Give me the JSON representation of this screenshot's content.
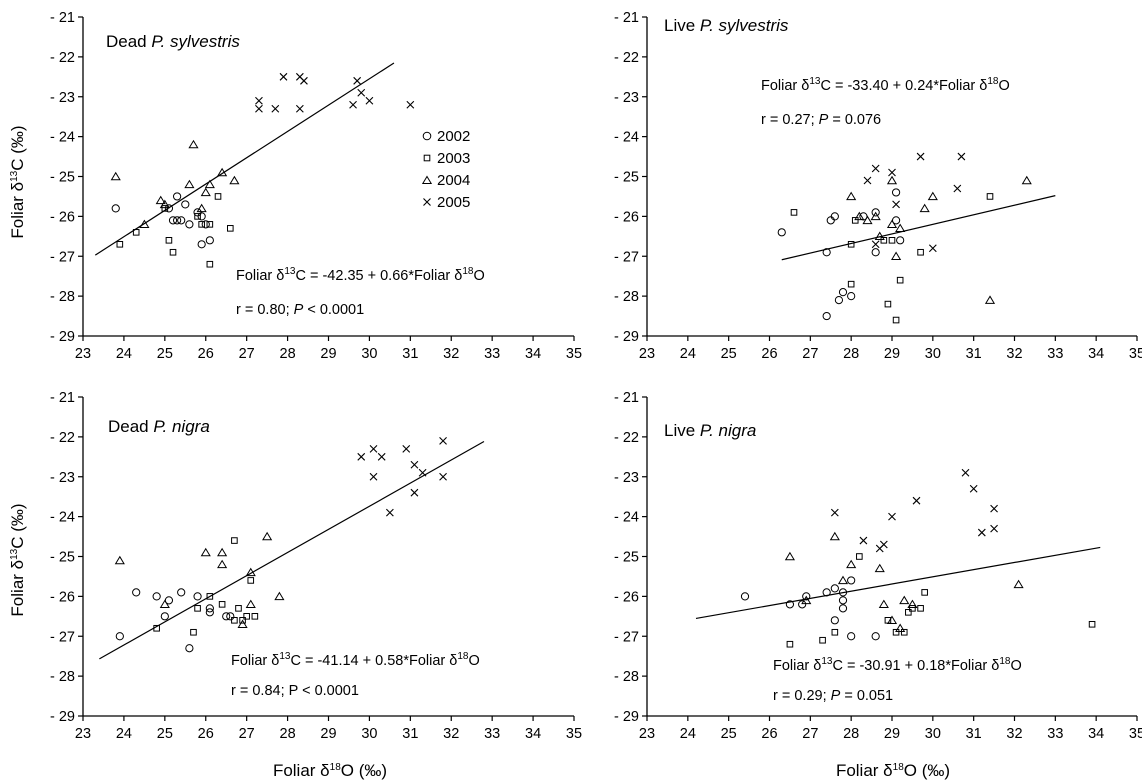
{
  "figure": {
    "x_axis_title": {
      "main": "Foliar δ",
      "sup": "18",
      "end": "O (‰)"
    },
    "y_axis_title": {
      "main": "Foliar δ",
      "sup": "13",
      "end": "C (‰)"
    },
    "legend": [
      {
        "symbol": "circle",
        "label": "2002"
      },
      {
        "symbol": "square",
        "label": "2003"
      },
      {
        "symbol": "triangle",
        "label": "2004"
      },
      {
        "symbol": "cross",
        "label": "2005"
      }
    ]
  },
  "chart_data": [
    {
      "type": "scatter",
      "panel": "Dead P. sylvestris",
      "label_plain": "Dead ",
      "label_italic": "P. sylvestris",
      "xlim": [
        23,
        35
      ],
      "ylim": [
        -29,
        -21
      ],
      "x_ticks": [
        "23",
        "24",
        "25",
        "26",
        "27",
        "28",
        "29",
        "30",
        "31",
        "32",
        "33",
        "34",
        "35"
      ],
      "y_ticks": [
        "- 21",
        "- 22",
        "- 23",
        "- 24",
        "- 25",
        "- 26",
        "- 27",
        "- 28",
        "- 29"
      ],
      "equation": {
        "pre": "Foliar δ",
        "sup1": "13",
        "mid": "C = -42.35 + 0.66*Foliar δ",
        "sup2": "18",
        "post": "O"
      },
      "stats": {
        "pre": "r = 0.80; ",
        "p": "P",
        "post": " < 0.0001"
      },
      "regression": {
        "intercept": -42.35,
        "slope": 0.66,
        "x_range": [
          23.3,
          30.6
        ]
      },
      "series": [
        {
          "name": "2002",
          "symbol": "circle",
          "points": [
            [
              23.8,
              -25.8
            ],
            [
              25.1,
              -25.8
            ],
            [
              25.2,
              -26.1
            ],
            [
              25.3,
              -25.5
            ],
            [
              25.3,
              -26.1
            ],
            [
              25.4,
              -26.1
            ],
            [
              25.5,
              -25.7
            ],
            [
              25.6,
              -26.2
            ],
            [
              25.8,
              -25.9
            ],
            [
              25.9,
              -26.0
            ],
            [
              25.9,
              -26.7
            ],
            [
              26.0,
              -26.2
            ],
            [
              26.1,
              -26.6
            ]
          ]
        },
        {
          "name": "2003",
          "symbol": "square",
          "points": [
            [
              23.9,
              -26.7
            ],
            [
              24.3,
              -26.4
            ],
            [
              25.0,
              -25.8
            ],
            [
              25.1,
              -26.6
            ],
            [
              25.2,
              -26.9
            ],
            [
              25.8,
              -26.0
            ],
            [
              25.9,
              -26.2
            ],
            [
              26.1,
              -26.2
            ],
            [
              26.1,
              -27.2
            ],
            [
              26.3,
              -25.5
            ],
            [
              26.6,
              -26.3
            ]
          ]
        },
        {
          "name": "2004",
          "symbol": "triangle",
          "points": [
            [
              23.8,
              -25.0
            ],
            [
              24.5,
              -26.2
            ],
            [
              24.9,
              -25.6
            ],
            [
              25.0,
              -25.7
            ],
            [
              25.6,
              -25.2
            ],
            [
              25.7,
              -24.2
            ],
            [
              25.9,
              -25.8
            ],
            [
              26.0,
              -25.4
            ],
            [
              26.1,
              -25.2
            ],
            [
              26.4,
              -24.9
            ],
            [
              26.7,
              -25.1
            ]
          ]
        },
        {
          "name": "2005",
          "symbol": "cross",
          "points": [
            [
              27.3,
              -23.1
            ],
            [
              27.3,
              -23.3
            ],
            [
              27.7,
              -23.3
            ],
            [
              27.9,
              -22.5
            ],
            [
              28.3,
              -23.3
            ],
            [
              28.3,
              -22.5
            ],
            [
              28.4,
              -22.6
            ],
            [
              29.6,
              -23.2
            ],
            [
              29.7,
              -22.6
            ],
            [
              29.8,
              -22.9
            ],
            [
              30.0,
              -23.1
            ],
            [
              31.0,
              -23.2
            ]
          ]
        }
      ]
    },
    {
      "type": "scatter",
      "panel": "Live P. sylvestris",
      "label_plain": "Live ",
      "label_italic": "P. sylvestris",
      "xlim": [
        23,
        35
      ],
      "ylim": [
        -29,
        -21
      ],
      "x_ticks": [
        "23",
        "24",
        "25",
        "26",
        "27",
        "28",
        "29",
        "30",
        "31",
        "32",
        "33",
        "34",
        "35"
      ],
      "y_ticks": [
        "- 21",
        "- 22",
        "- 23",
        "- 24",
        "- 25",
        "- 26",
        "- 27",
        "- 28",
        "- 29"
      ],
      "equation": {
        "pre": "Foliar δ",
        "sup1": "13",
        "mid": "C = -33.40 + 0.24*Foliar δ",
        "sup2": "18",
        "post": "O"
      },
      "stats": {
        "pre": "r = 0.27; ",
        "p": "P",
        "post": " = 0.076"
      },
      "regression": {
        "intercept": -33.4,
        "slope": 0.24,
        "x_range": [
          26.3,
          33.0
        ]
      },
      "series": [
        {
          "name": "2002",
          "symbol": "circle",
          "points": [
            [
              26.3,
              -26.4
            ],
            [
              27.4,
              -26.9
            ],
            [
              27.4,
              -28.5
            ],
            [
              27.5,
              -26.1
            ],
            [
              27.6,
              -26.0
            ],
            [
              27.7,
              -28.1
            ],
            [
              27.8,
              -27.9
            ],
            [
              28.0,
              -28.0
            ],
            [
              28.3,
              -26.0
            ],
            [
              28.6,
              -25.9
            ],
            [
              28.6,
              -26.9
            ],
            [
              29.1,
              -25.4
            ],
            [
              29.1,
              -26.1
            ],
            [
              29.2,
              -26.6
            ]
          ]
        },
        {
          "name": "2003",
          "symbol": "square",
          "points": [
            [
              26.6,
              -25.9
            ],
            [
              28.0,
              -26.7
            ],
            [
              28.0,
              -27.7
            ],
            [
              28.1,
              -26.1
            ],
            [
              28.8,
              -26.6
            ],
            [
              28.9,
              -28.2
            ],
            [
              29.0,
              -26.6
            ],
            [
              29.1,
              -28.6
            ],
            [
              29.2,
              -27.6
            ],
            [
              29.7,
              -26.9
            ],
            [
              31.4,
              -25.5
            ]
          ]
        },
        {
          "name": "2004",
          "symbol": "triangle",
          "points": [
            [
              28.0,
              -25.5
            ],
            [
              28.2,
              -26.0
            ],
            [
              28.4,
              -26.1
            ],
            [
              28.6,
              -26.0
            ],
            [
              28.7,
              -26.5
            ],
            [
              29.0,
              -25.1
            ],
            [
              29.0,
              -26.2
            ],
            [
              29.1,
              -27.0
            ],
            [
              29.2,
              -26.3
            ],
            [
              29.8,
              -25.8
            ],
            [
              30.0,
              -25.5
            ],
            [
              31.4,
              -28.1
            ],
            [
              32.3,
              -25.1
            ]
          ]
        },
        {
          "name": "2005",
          "symbol": "cross",
          "points": [
            [
              28.4,
              -25.1
            ],
            [
              28.6,
              -24.8
            ],
            [
              28.6,
              -26.7
            ],
            [
              29.0,
              -24.9
            ],
            [
              29.1,
              -25.7
            ],
            [
              29.7,
              -24.5
            ],
            [
              30.0,
              -26.8
            ],
            [
              30.6,
              -25.3
            ],
            [
              30.7,
              -24.5
            ]
          ]
        }
      ]
    },
    {
      "type": "scatter",
      "panel": "Dead P. nigra",
      "label_plain": "Dead ",
      "label_italic": "P. nigra",
      "xlim": [
        23,
        35
      ],
      "ylim": [
        -29,
        -21
      ],
      "x_ticks": [
        "23",
        "24",
        "25",
        "26",
        "27",
        "28",
        "29",
        "30",
        "31",
        "32",
        "33",
        "34",
        "35"
      ],
      "y_ticks": [
        "- 21",
        "- 22",
        "- 23",
        "- 24",
        "- 25",
        "- 26",
        "- 27",
        "- 28",
        "- 29"
      ],
      "equation": {
        "pre": "Foliar δ",
        "sup1": "13",
        "mid": "C = -41.14 + 0.58*Foliar δ",
        "sup2": "18",
        "post": "O"
      },
      "stats": {
        "pre": "r = 0.84; P < 0.0001",
        "p": "",
        "post": ""
      },
      "regression": {
        "intercept": -41.14,
        "slope": 0.58,
        "x_range": [
          23.4,
          32.8
        ]
      },
      "series": [
        {
          "name": "2002",
          "symbol": "circle",
          "points": [
            [
              23.9,
              -27.0
            ],
            [
              24.3,
              -25.9
            ],
            [
              24.8,
              -26.0
            ],
            [
              25.0,
              -26.5
            ],
            [
              25.1,
              -26.1
            ],
            [
              25.4,
              -25.9
            ],
            [
              25.6,
              -27.3
            ],
            [
              25.8,
              -26.0
            ],
            [
              26.1,
              -26.3
            ],
            [
              26.1,
              -26.4
            ],
            [
              26.5,
              -26.5
            ],
            [
              26.6,
              -26.5
            ]
          ]
        },
        {
          "name": "2003",
          "symbol": "square",
          "points": [
            [
              24.8,
              -26.8
            ],
            [
              25.7,
              -26.9
            ],
            [
              25.8,
              -26.3
            ],
            [
              26.1,
              -26.0
            ],
            [
              26.4,
              -26.2
            ],
            [
              26.7,
              -24.6
            ],
            [
              26.7,
              -26.6
            ],
            [
              26.8,
              -26.3
            ],
            [
              26.9,
              -26.6
            ],
            [
              27.0,
              -26.5
            ],
            [
              27.1,
              -25.6
            ],
            [
              27.2,
              -26.5
            ]
          ]
        },
        {
          "name": "2004",
          "symbol": "triangle",
          "points": [
            [
              23.9,
              -25.1
            ],
            [
              25.0,
              -26.2
            ],
            [
              26.0,
              -24.9
            ],
            [
              26.4,
              -24.9
            ],
            [
              26.4,
              -25.2
            ],
            [
              26.9,
              -26.7
            ],
            [
              27.1,
              -26.2
            ],
            [
              27.1,
              -25.4
            ],
            [
              27.5,
              -24.5
            ],
            [
              27.8,
              -26.0
            ]
          ]
        },
        {
          "name": "2005",
          "symbol": "cross",
          "points": [
            [
              29.8,
              -22.5
            ],
            [
              30.1,
              -22.3
            ],
            [
              30.1,
              -23.0
            ],
            [
              30.3,
              -22.5
            ],
            [
              30.5,
              -23.9
            ],
            [
              30.9,
              -22.3
            ],
            [
              31.1,
              -22.7
            ],
            [
              31.1,
              -23.4
            ],
            [
              31.3,
              -22.9
            ],
            [
              31.8,
              -22.1
            ],
            [
              31.8,
              -23.0
            ]
          ]
        }
      ]
    },
    {
      "type": "scatter",
      "panel": "Live P. nigra",
      "label_plain": "Live ",
      "label_italic": "P. nigra",
      "xlim": [
        23,
        35
      ],
      "ylim": [
        -29,
        -21
      ],
      "x_ticks": [
        "23",
        "24",
        "25",
        "26",
        "27",
        "28",
        "29",
        "30",
        "31",
        "32",
        "33",
        "34",
        "35"
      ],
      "y_ticks": [
        "- 21",
        "- 22",
        "- 23",
        "- 24",
        "- 25",
        "- 26",
        "- 27",
        "- 28",
        "- 29"
      ],
      "equation": {
        "pre": "Foliar δ",
        "sup1": "13",
        "mid": "C = -30.91 + 0.18*Foliar δ",
        "sup2": "18",
        "post": "O"
      },
      "stats": {
        "pre": "r = 0.29; ",
        "p": "P",
        "post": " = 0.051"
      },
      "regression": {
        "intercept": -30.91,
        "slope": 0.18,
        "x_range": [
          24.2,
          34.1
        ]
      },
      "series": [
        {
          "name": "2002",
          "symbol": "circle",
          "points": [
            [
              25.4,
              -26.0
            ],
            [
              26.5,
              -26.2
            ],
            [
              26.8,
              -26.2
            ],
            [
              26.9,
              -26.0
            ],
            [
              27.4,
              -25.9
            ],
            [
              27.6,
              -25.8
            ],
            [
              27.6,
              -26.6
            ],
            [
              27.8,
              -25.9
            ],
            [
              27.8,
              -26.1
            ],
            [
              27.8,
              -26.3
            ],
            [
              28.0,
              -27.0
            ],
            [
              28.0,
              -25.6
            ],
            [
              28.6,
              -27.0
            ]
          ]
        },
        {
          "name": "2003",
          "symbol": "square",
          "points": [
            [
              26.5,
              -27.2
            ],
            [
              27.3,
              -27.1
            ],
            [
              27.6,
              -26.9
            ],
            [
              28.2,
              -25.0
            ],
            [
              28.9,
              -26.6
            ],
            [
              29.1,
              -26.9
            ],
            [
              29.3,
              -26.9
            ],
            [
              29.4,
              -26.4
            ],
            [
              29.5,
              -26.3
            ],
            [
              29.7,
              -26.3
            ],
            [
              29.8,
              -25.9
            ],
            [
              33.9,
              -26.7
            ]
          ]
        },
        {
          "name": "2004",
          "symbol": "triangle",
          "points": [
            [
              26.5,
              -25.0
            ],
            [
              26.9,
              -26.1
            ],
            [
              27.6,
              -24.5
            ],
            [
              27.8,
              -25.6
            ],
            [
              28.0,
              -25.2
            ],
            [
              28.7,
              -25.3
            ],
            [
              28.8,
              -26.2
            ],
            [
              29.0,
              -26.6
            ],
            [
              29.2,
              -26.8
            ],
            [
              29.3,
              -26.1
            ],
            [
              29.5,
              -26.2
            ],
            [
              32.1,
              -25.7
            ]
          ]
        },
        {
          "name": "2005",
          "symbol": "cross",
          "points": [
            [
              27.6,
              -23.9
            ],
            [
              28.3,
              -24.6
            ],
            [
              28.7,
              -24.8
            ],
            [
              28.8,
              -24.7
            ],
            [
              29.0,
              -24.0
            ],
            [
              29.6,
              -23.6
            ],
            [
              30.8,
              -22.9
            ],
            [
              31.0,
              -23.3
            ],
            [
              31.2,
              -24.4
            ],
            [
              31.5,
              -23.8
            ],
            [
              31.5,
              -24.3
            ]
          ]
        }
      ]
    }
  ]
}
